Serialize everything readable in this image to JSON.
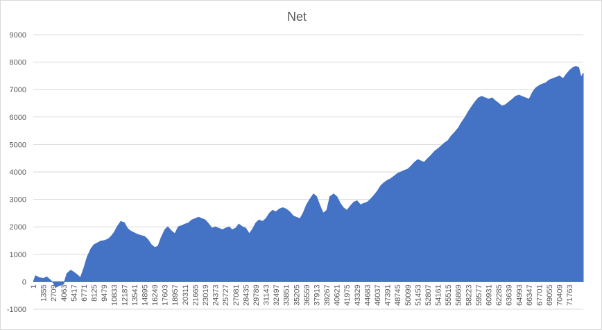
{
  "chart_data": {
    "type": "area",
    "title": "Net",
    "xlabel": "",
    "ylabel": "",
    "ylim": [
      -1000,
      9000
    ],
    "yticks": [
      -1000,
      0,
      1000,
      2000,
      3000,
      4000,
      5000,
      6000,
      7000,
      8000,
      9000
    ],
    "xlim": [
      1,
      73600
    ],
    "xticks": [
      1,
      1355,
      2709,
      4063,
      5417,
      6771,
      8125,
      9479,
      10833,
      12187,
      13541,
      14895,
      16249,
      17603,
      18957,
      20311,
      21665,
      23019,
      24373,
      25727,
      27081,
      28435,
      29789,
      31143,
      32497,
      33851,
      35205,
      36559,
      37913,
      39267,
      40621,
      41975,
      43329,
      44683,
      46037,
      47391,
      48745,
      50099,
      51453,
      52807,
      54161,
      55515,
      56869,
      58223,
      59577,
      60931,
      62285,
      63639,
      64993,
      66347,
      67701,
      69055,
      70409,
      71763
    ],
    "grid": true,
    "legend": "none",
    "color": "#4472c4",
    "series": [
      {
        "x": [
          1,
          300,
          800,
          1355,
          1800,
          2300,
          2709,
          3000,
          3400,
          3700,
          4063,
          4500,
          5000,
          5417,
          5900,
          6300,
          6771,
          7200,
          7700,
          8125,
          8600,
          9000,
          9479,
          10000,
          10400,
          10833,
          11200,
          11700,
          12187,
          12600,
          13000,
          13541,
          14000,
          14500,
          14895,
          15300,
          15800,
          16249,
          16700,
          17100,
          17603,
          18000,
          18500,
          18957,
          19400,
          19900,
          20311,
          20800,
          21200,
          21665,
          22100,
          22600,
          23019,
          23500,
          23900,
          24373,
          24800,
          25300,
          25727,
          26200,
          26600,
          27081,
          27500,
          28000,
          28435,
          28900,
          29300,
          29789,
          30200,
          30700,
          31143,
          31600,
          32000,
          32497,
          32900,
          33400,
          33851,
          34300,
          34800,
          35205,
          35700,
          36100,
          36559,
          37000,
          37500,
          37913,
          38400,
          38800,
          39267,
          39700,
          40200,
          40621,
          41100,
          41500,
          41975,
          42400,
          42900,
          43329,
          43800,
          44200,
          44683,
          45100,
          45600,
          46037,
          46500,
          46900,
          47391,
          47800,
          48300,
          48745,
          49200,
          49600,
          50099,
          50500,
          51000,
          51453,
          51900,
          52300,
          52807,
          53200,
          53700,
          54161,
          54600,
          55000,
          55515,
          55900,
          56400,
          56869,
          57300,
          57800,
          58223,
          58700,
          59100,
          59577,
          60000,
          60500,
          60931,
          61400,
          61800,
          62285,
          62700,
          63200,
          63639,
          64100,
          64500,
          64993,
          65400,
          65900,
          66347,
          66800,
          67200,
          67701,
          68100,
          68600,
          69055,
          69500,
          70000,
          70409,
          70900,
          71300,
          71763,
          72200,
          72600,
          73000,
          73300,
          73600
        ],
        "values": [
          0,
          220,
          150,
          120,
          180,
          60,
          -50,
          -200,
          -150,
          -120,
          -80,
          300,
          420,
          350,
          250,
          150,
          500,
          900,
          1200,
          1350,
          1420,
          1480,
          1500,
          1550,
          1650,
          1800,
          2000,
          2200,
          2150,
          1950,
          1850,
          1780,
          1720,
          1680,
          1650,
          1550,
          1350,
          1250,
          1300,
          1600,
          1900,
          2000,
          1850,
          1750,
          2000,
          2050,
          2100,
          2150,
          2250,
          2300,
          2350,
          2300,
          2250,
          2100,
          1950,
          2000,
          1950,
          1900,
          1950,
          2000,
          1900,
          1950,
          2100,
          2000,
          1950,
          1750,
          1900,
          2150,
          2250,
          2200,
          2300,
          2500,
          2600,
          2550,
          2650,
          2700,
          2650,
          2550,
          2400,
          2350,
          2300,
          2500,
          2800,
          3000,
          3200,
          3100,
          2750,
          2500,
          2600,
          3100,
          3200,
          3100,
          2850,
          2700,
          2600,
          2750,
          2900,
          2950,
          2800,
          2850,
          2900,
          3000,
          3150,
          3300,
          3500,
          3600,
          3700,
          3750,
          3850,
          3950,
          4000,
          4050,
          4100,
          4200,
          4350,
          4450,
          4400,
          4350,
          4500,
          4600,
          4750,
          4850,
          4950,
          5050,
          5150,
          5300,
          5450,
          5600,
          5800,
          6000,
          6200,
          6400,
          6550,
          6700,
          6750,
          6700,
          6650,
          6700,
          6600,
          6500,
          6400,
          6450,
          6550,
          6650,
          6750,
          6800,
          6750,
          6700,
          6650,
          6900,
          7050,
          7150,
          7200,
          7250,
          7350,
          7400,
          7450,
          7500,
          7400,
          7550,
          7700,
          7800,
          7850,
          7800,
          7450,
          7600
        ]
      }
    ]
  }
}
